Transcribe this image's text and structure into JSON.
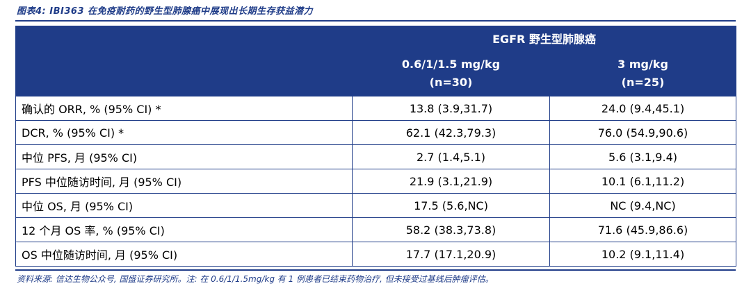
{
  "caption": "图表4:  IBI363 在免疫耐药的野生型肺腺癌中展现出长期生存获益潜力",
  "table": {
    "group_header": "EGFR 野生型肺腺癌",
    "columns": [
      {
        "line1": "0.6/1/1.5 mg/kg",
        "line2": "(n=30)"
      },
      {
        "line1": "3 mg/kg",
        "line2": "(n=25)"
      }
    ],
    "rows": [
      {
        "label": "确认的 ORR, % (95% CI) *",
        "v1": "13.8 (3.9,31.7)",
        "v2": "24.0 (9.4,45.1)"
      },
      {
        "label": "DCR, % (95% CI) *",
        "v1": "62.1 (42.3,79.3)",
        "v2": "76.0 (54.9,90.6)"
      },
      {
        "label": "中位 PFS, 月 (95% CI)",
        "v1": "2.7 (1.4,5.1)",
        "v2": "5.6 (3.1,9.4)"
      },
      {
        "label": "PFS 中位随访时间, 月 (95% CI)",
        "v1": "21.9 (3.1,21.9)",
        "v2": "10.1 (6.1,11.2)"
      },
      {
        "label": "中位 OS, 月 (95% CI)",
        "v1": "17.5 (5.6,NC)",
        "v2": "NC (9.4,NC)"
      },
      {
        "label": "12 个月 OS 率, % (95% CI)",
        "v1": "58.2 (38.3,73.8)",
        "v2": "71.6 (45.9,86.6)"
      },
      {
        "label": "OS 中位随访时间, 月 (95% CI)",
        "v1": "17.7 (17.1,20.9)",
        "v2": "10.2 (9.1,11.4)"
      }
    ]
  },
  "source": "资料来源: 信达生物公众号, 国盛证券研究所。注: 在 0.6/1/1.5mg/kg 有 1 例患者已结束药物治疗, 但未接受过基线后肿瘤评估。"
}
